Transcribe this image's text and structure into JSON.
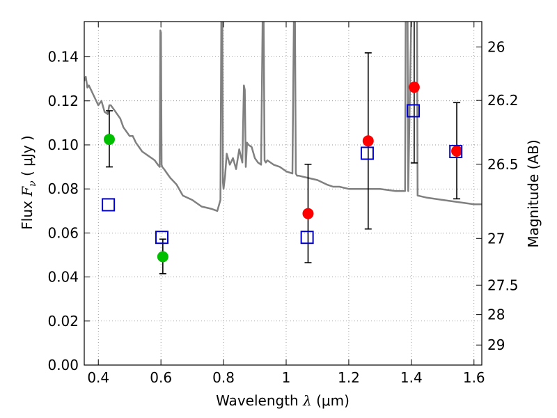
{
  "chart_data": {
    "type": "scatter",
    "title": "",
    "xlabel": {
      "pre": "Wavelength  ",
      "sym": "λ",
      "post": " (μm)"
    },
    "ylabel": {
      "pre": "Flux  ",
      "sym": "F",
      "sub": "ν",
      "post": "  ( μJy )"
    },
    "y2label": "Magnitude (AB)",
    "xlim": [
      0.355,
      1.625
    ],
    "ylim": [
      0.0,
      0.156
    ],
    "grid": true,
    "x_ticks": [
      {
        "value": 0.4,
        "label": "0.4"
      },
      {
        "value": 0.6,
        "label": "0.6"
      },
      {
        "value": 0.8,
        "label": "0.8"
      },
      {
        "value": 1.0,
        "label": "1"
      },
      {
        "value": 1.2,
        "label": "1.2"
      },
      {
        "value": 1.4,
        "label": "1.4"
      },
      {
        "value": 1.6,
        "label": "1.6"
      }
    ],
    "y_ticks": [
      {
        "value": 0.0,
        "label": "0.00"
      },
      {
        "value": 0.02,
        "label": "0.02"
      },
      {
        "value": 0.04,
        "label": "0.04"
      },
      {
        "value": 0.06,
        "label": "0.06"
      },
      {
        "value": 0.08,
        "label": "0.08"
      },
      {
        "value": 0.1,
        "label": "0.10"
      },
      {
        "value": 0.12,
        "label": "0.12"
      },
      {
        "value": 0.14,
        "label": "0.14"
      }
    ],
    "y2_ticks": [
      {
        "label": "26",
        "flux": 0.1445
      },
      {
        "label": "26.2",
        "flux": 0.1202
      },
      {
        "label": "26.5",
        "flux": 0.0912
      },
      {
        "label": "27",
        "flux": 0.0575
      },
      {
        "label": "27.5",
        "flux": 0.0363
      },
      {
        "label": "28",
        "flux": 0.0229
      },
      {
        "label": "29",
        "flux": 0.0091
      }
    ],
    "series": [
      {
        "marker": "circle",
        "color": "#00bf00",
        "points": [
          {
            "x": 0.435,
            "y": 0.1025,
            "yerr_low": 0.09,
            "yerr_high": 0.1155
          },
          {
            "x": 0.606,
            "y": 0.0492,
            "yerr_low": 0.0415,
            "yerr_high": 0.0572
          }
        ]
      },
      {
        "marker": "circle",
        "color": "#ff0000",
        "points": [
          {
            "x": 1.07,
            "y": 0.0688,
            "yerr_low": 0.0465,
            "yerr_high": 0.0912
          },
          {
            "x": 1.262,
            "y": 0.1018,
            "yerr_low": 0.0618,
            "yerr_high": 0.1418
          },
          {
            "x": 1.409,
            "y": 0.1262,
            "yerr_low": 0.0918,
            "yerr_high": 0.16
          },
          {
            "x": 1.545,
            "y": 0.0972,
            "yerr_low": 0.0755,
            "yerr_high": 0.1192
          }
        ]
      },
      {
        "marker": "open-square",
        "color": "#0000cc",
        "points": [
          {
            "x": 0.432,
            "y": 0.0728
          },
          {
            "x": 0.603,
            "y": 0.058
          },
          {
            "x": 1.067,
            "y": 0.058
          },
          {
            "x": 1.259,
            "y": 0.0962
          },
          {
            "x": 1.406,
            "y": 0.1155
          },
          {
            "x": 1.542,
            "y": 0.097
          }
        ]
      }
    ],
    "model_spectrum": {
      "color": "#808080",
      "x": [
        0.355,
        0.36,
        0.365,
        0.37,
        0.38,
        0.39,
        0.4,
        0.41,
        0.42,
        0.43,
        0.435,
        0.44,
        0.45,
        0.46,
        0.47,
        0.48,
        0.49,
        0.5,
        0.51,
        0.52,
        0.53,
        0.54,
        0.55,
        0.56,
        0.57,
        0.58,
        0.59,
        0.596,
        0.598,
        0.6,
        0.602,
        0.604,
        0.61,
        0.62,
        0.63,
        0.65,
        0.67,
        0.7,
        0.73,
        0.76,
        0.78,
        0.79,
        0.793,
        0.796,
        0.798,
        0.8,
        0.805,
        0.81,
        0.82,
        0.83,
        0.84,
        0.85,
        0.86,
        0.865,
        0.868,
        0.871,
        0.875,
        0.88,
        0.89,
        0.9,
        0.91,
        0.92,
        0.925,
        0.928,
        0.931,
        0.935,
        0.94,
        0.96,
        0.98,
        1.0,
        1.02,
        1.025,
        1.028,
        1.031,
        1.035,
        1.04,
        1.07,
        1.1,
        1.13,
        1.15,
        1.17,
        1.2,
        1.25,
        1.3,
        1.35,
        1.38,
        1.382,
        1.384,
        1.388,
        1.39,
        1.4,
        1.412,
        1.416,
        1.418,
        1.42,
        1.45,
        1.5,
        1.55,
        1.6,
        1.625
      ],
      "y": [
        0.129,
        0.131,
        0.126,
        0.127,
        0.124,
        0.121,
        0.118,
        0.12,
        0.115,
        0.114,
        0.118,
        0.118,
        0.116,
        0.114,
        0.112,
        0.108,
        0.106,
        0.104,
        0.104,
        0.101,
        0.099,
        0.097,
        0.096,
        0.095,
        0.094,
        0.093,
        0.091,
        0.09,
        0.152,
        0.151,
        0.091,
        0.09,
        0.089,
        0.087,
        0.085,
        0.082,
        0.077,
        0.075,
        0.072,
        0.071,
        0.07,
        0.075,
        0.16,
        0.16,
        0.083,
        0.08,
        0.086,
        0.096,
        0.091,
        0.094,
        0.089,
        0.098,
        0.092,
        0.127,
        0.125,
        0.09,
        0.101,
        0.1,
        0.099,
        0.094,
        0.092,
        0.091,
        0.16,
        0.16,
        0.093,
        0.092,
        0.093,
        0.091,
        0.09,
        0.088,
        0.087,
        0.16,
        0.16,
        0.087,
        0.086,
        0.086,
        0.085,
        0.084,
        0.082,
        0.081,
        0.081,
        0.08,
        0.08,
        0.08,
        0.079,
        0.079,
        0.16,
        0.16,
        0.16,
        0.079,
        0.16,
        0.16,
        0.16,
        0.16,
        0.077,
        0.076,
        0.075,
        0.074,
        0.073,
        0.073
      ]
    }
  }
}
